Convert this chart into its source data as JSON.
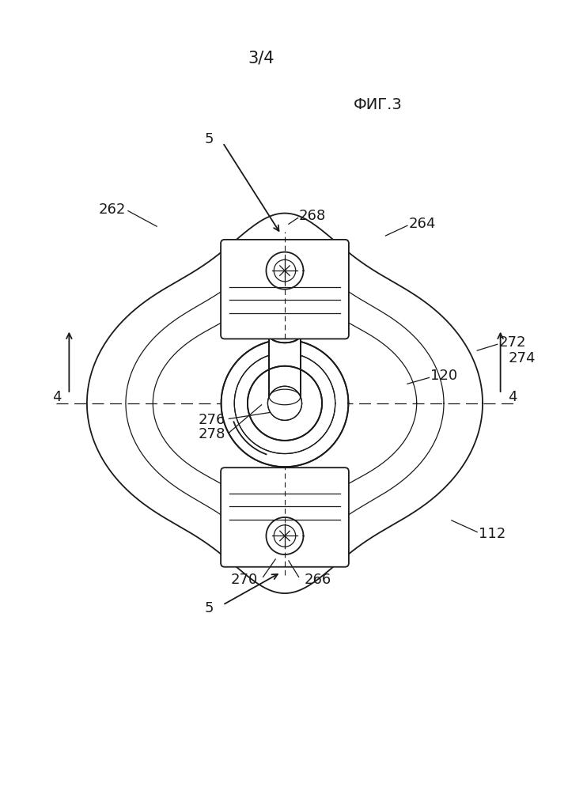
{
  "title": "3/4",
  "subtitle": "ФИГ.3",
  "bg_color": "#ffffff",
  "line_color": "#1a1a1a",
  "labels": {
    "title": "3/4",
    "subtitle": "ФИГ.3",
    "n5_top": "5",
    "n5_bot": "5",
    "n268": "268",
    "n264": "264",
    "n262": "262",
    "n272": "272",
    "n274": "274",
    "n120": "120",
    "n276": "276",
    "n278": "278",
    "n4_left": "4",
    "n4_right": "4",
    "n270": "270",
    "n266": "266",
    "n112": "112"
  }
}
